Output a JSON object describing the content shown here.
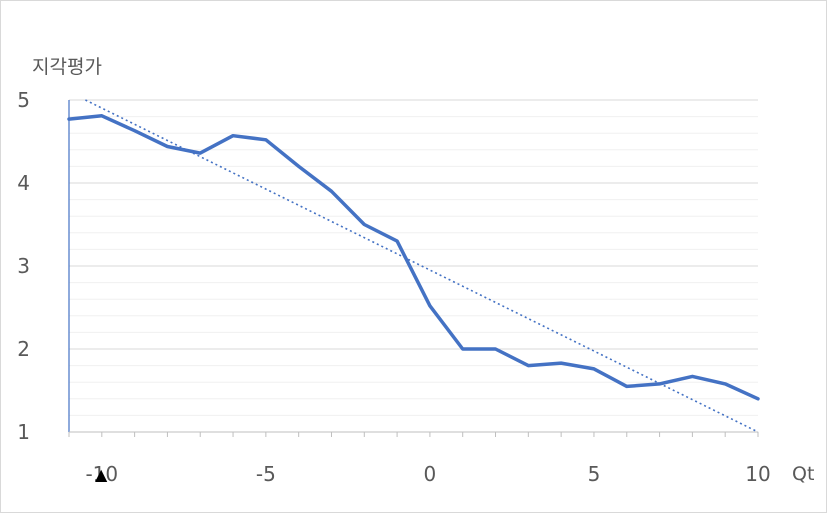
{
  "chart_data": {
    "type": "line",
    "title": "",
    "ylabel": "지각평가",
    "xlabel": "Qt",
    "xlim": [
      -11,
      10
    ],
    "ylim": [
      1,
      5
    ],
    "x_ticks": [
      -10,
      -5,
      0,
      5,
      10
    ],
    "x_tick_labels": [
      "-10",
      "-5",
      "0",
      "5",
      "10"
    ],
    "y_ticks": [
      1,
      2,
      3,
      4,
      5
    ],
    "y_tick_labels": [
      "1",
      "2",
      "3",
      "4",
      "5"
    ],
    "marker_annotation": "▲",
    "grid": true,
    "legend": "none",
    "series": [
      {
        "x": [
          -11,
          -10,
          -9,
          -8,
          -7,
          -6,
          -5,
          -4,
          -3,
          -2,
          -1,
          0,
          1,
          2,
          3,
          4,
          5,
          6,
          7,
          8,
          9,
          10
        ],
        "values": [
          4.77,
          4.81,
          4.63,
          4.44,
          4.36,
          4.57,
          4.52,
          4.2,
          3.9,
          3.5,
          3.3,
          2.52,
          2.0,
          2.0,
          1.8,
          1.83,
          1.76,
          1.55,
          1.58,
          1.67,
          1.58,
          1.4
        ],
        "color": "#4472c4"
      }
    ],
    "trendline": {
      "type": "linear",
      "x": [
        -10.5,
        10
      ],
      "values": [
        5.0,
        1.0
      ],
      "color": "#4472c4",
      "style": "dotted"
    }
  }
}
